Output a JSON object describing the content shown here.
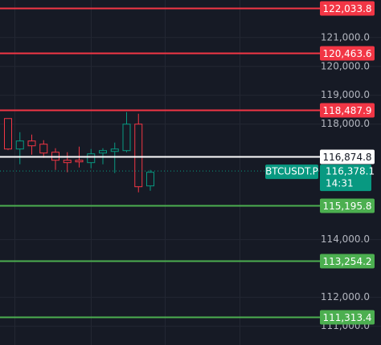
{
  "chart_data": {
    "type": "candlestick",
    "symbol": "BTCUSDT.P",
    "countdown": "14:31",
    "last_price": {
      "value": 116378.1,
      "label": "116,378.1"
    },
    "up_color": "#089981",
    "down_color": "#f23645",
    "open": [
      118194,
      117139,
      117417,
      117306,
      117028,
      116750,
      116750,
      116667,
      117000,
      117055,
      117083,
      118000,
      115861
    ],
    "high": [
      118200,
      117722,
      117639,
      117444,
      117167,
      117028,
      117222,
      117139,
      117167,
      117361,
      118417,
      118361,
      116417
    ],
    "low": [
      117100,
      116611,
      116944,
      116833,
      116417,
      116333,
      116500,
      116472,
      116611,
      116306,
      117028,
      115639,
      115694
    ],
    "close": [
      117139,
      117417,
      117250,
      117000,
      116750,
      116667,
      116694,
      116972,
      117083,
      117139,
      118000,
      115833,
      116333
    ],
    "ylim": [
      110350,
      122300
    ],
    "yticks": [
      {
        "value": 121000,
        "label": "121,000.0"
      },
      {
        "value": 120000,
        "label": "120,000.0"
      },
      {
        "value": 119000,
        "label": "119,000.0"
      },
      {
        "value": 118000,
        "label": "118,000.0"
      },
      {
        "value": 114000,
        "label": "114,000.0"
      },
      {
        "value": 112000,
        "label": "112,000.0"
      },
      {
        "value": 111000,
        "label": "111,000.0"
      }
    ],
    "grid": true,
    "price_lines": [
      {
        "value": 122033.8,
        "label": "122,033.8",
        "color": "#f23645"
      },
      {
        "value": 120463.6,
        "label": "120,463.6",
        "color": "#f23645"
      },
      {
        "value": 118487.9,
        "label": "118,487.9",
        "color": "#f23645"
      },
      {
        "value": 116874.8,
        "label": "116,874.8",
        "color": "#ffffff"
      },
      {
        "value": 115195.8,
        "label": "115,195.8",
        "color": "#4caf50"
      },
      {
        "value": 113254.2,
        "label": "113,254.2",
        "color": "#4caf50"
      },
      {
        "value": 111313.4,
        "label": "111,313.4",
        "color": "#4caf50"
      }
    ]
  }
}
